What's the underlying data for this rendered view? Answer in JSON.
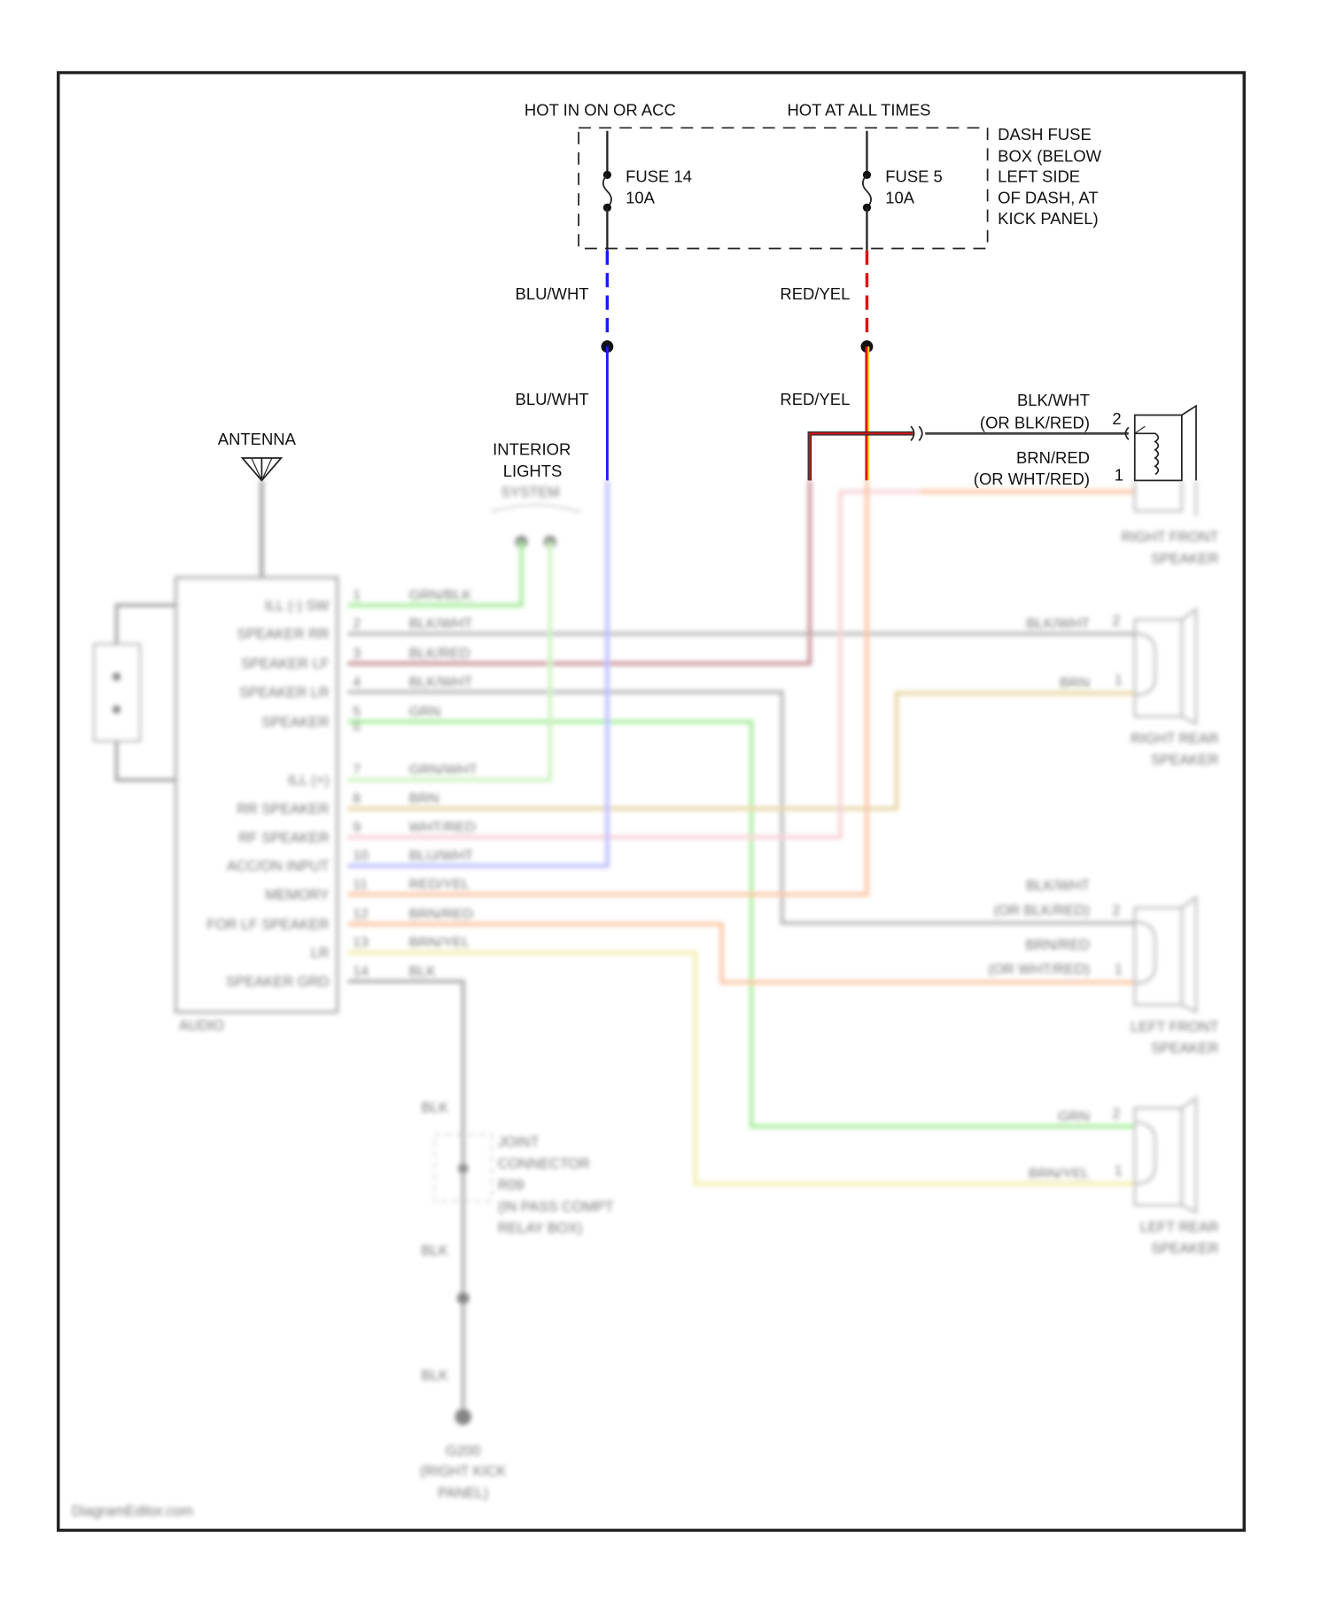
{
  "top": {
    "hot_on_acc": "HOT IN ON OR ACC",
    "hot_all_times": "HOT AT ALL TIMES",
    "fuse14_name": "FUSE 14",
    "fuse14_rating": "10A",
    "fuse5_name": "FUSE 5",
    "fuse5_rating": "10A",
    "fuse_box_lines": [
      "DASH FUSE",
      "BOX (BELOW",
      "LEFT SIDE",
      "OF DASH, AT",
      "KICK PANEL)"
    ],
    "wire_blu_wht_upper": "BLU/WHT",
    "wire_red_yel_upper": "RED/YEL",
    "wire_blu_wht_lower": "BLU/WHT",
    "wire_red_yel_lower": "RED/YEL",
    "rf_pin2_wire": "BLK/WHT",
    "rf_pin2_alt": "(OR BLK/RED)",
    "rf_pin2_num": "2",
    "rf_pin1_wire": "BRN/RED",
    "rf_pin1_alt": "(OR WHT/RED)",
    "rf_pin1_num": "1",
    "antenna": "ANTENNA",
    "interior_lights_lines": [
      "INTERIOR",
      "LIGHTS",
      "SYSTEM"
    ]
  },
  "audio_unit": {
    "label": "AUDIO",
    "pins": [
      {
        "num": "1",
        "func": "ILL (-) SW",
        "wire": "GRN/BLK"
      },
      {
        "num": "2",
        "func": "SPEAKER RR",
        "wire": "BLK/WHT"
      },
      {
        "num": "3",
        "func": "SPEAKER LF",
        "wire": "BLK/RED"
      },
      {
        "num": "4",
        "func": "SPEAKER LR",
        "wire": "BLK/WHT"
      },
      {
        "num": "5",
        "func": "SPEAKER",
        "wire": "GRN"
      },
      {
        "num": "6",
        "func": "",
        "wire": ""
      },
      {
        "num": "7",
        "func": "ILL (+)",
        "wire": "GRN/WHT"
      },
      {
        "num": "8",
        "func": "RR SPEAKER",
        "wire": "BRN"
      },
      {
        "num": "9",
        "func": "RF SPEAKER",
        "wire": "WHT/RED"
      },
      {
        "num": "10",
        "func": "ACC/ON INPUT",
        "wire": "BLU/WHT"
      },
      {
        "num": "11",
        "func": "MEMORY",
        "wire": "RED/YEL"
      },
      {
        "num": "12",
        "func": "FOR LF SPEAKER",
        "wire": "BRN/RED"
      },
      {
        "num": "13",
        "func": "LR",
        "wire": "BRN/YEL"
      },
      {
        "num": "14",
        "func": "SPEAKER GRD",
        "wire": "BLK"
      }
    ]
  },
  "speakers": [
    {
      "name_lines": [
        "RIGHT FRONT",
        "SPEAKER"
      ]
    },
    {
      "name_lines": [
        "RIGHT REAR",
        "SPEAKER"
      ],
      "pin2_wire": "BLK/WHT",
      "pin1_wire": "BRN",
      "pin2": "2",
      "pin1": "1"
    },
    {
      "name_lines": [
        "LEFT FRONT",
        "SPEAKER"
      ],
      "pin2_wire": "BLK/WHT",
      "pin2_alt": "(OR BLK/RED)",
      "pin1_wire": "BRN/RED",
      "pin1_alt": "(OR WHT/RED)",
      "pin2": "2",
      "pin1": "1"
    },
    {
      "name_lines": [
        "LEFT REAR",
        "SPEAKER"
      ],
      "pin2_wire": "GRN",
      "pin1_wire": "BRN/YEL",
      "pin2": "2",
      "pin1": "1"
    }
  ],
  "ground": {
    "wire1": "BLK",
    "wire2": "BLK",
    "wire3": "BLK",
    "joint_lines": [
      "JOINT",
      "CONNECTOR",
      "R09",
      "(IN PASS COMPT",
      "RELAY BOX)"
    ],
    "ground_lines": [
      "G200",
      "(RIGHT KICK",
      "PANEL)"
    ]
  },
  "watermark": "DiagramEditor.com",
  "colors": {
    "blu_wht": "#1a1aff",
    "red_yel": "#e01010",
    "green": "#66dd55",
    "grn_wht": "#a8e890",
    "gray": "#888888",
    "blk_red": "#a04050",
    "brn": "#d4b860",
    "wht_red": "#f0b0b8",
    "orange": "#f59a60",
    "yellow": "#e8e070",
    "blue_light": "#8888ff"
  }
}
